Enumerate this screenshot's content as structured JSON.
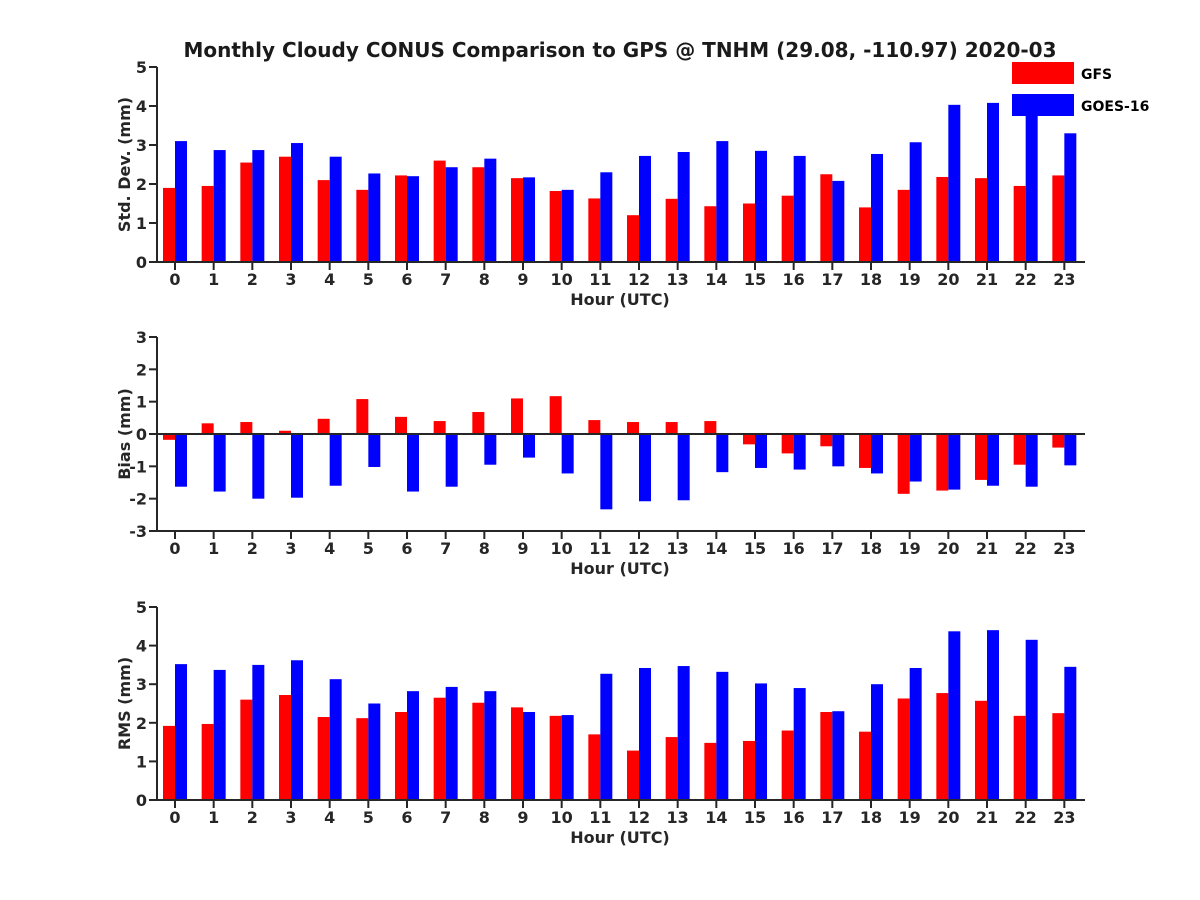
{
  "colors": {
    "gfs": "#ff0000",
    "goes": "#0000ff",
    "axis": "#262626"
  },
  "chart_data": [
    {
      "type": "bar",
      "title": "Monthly Cloudy CONUS Comparison to GPS @ TNHM (29.08, -110.97) 2020-03",
      "xlabel": "Hour (UTC)",
      "ylabel": "Std. Dev. (mm)",
      "ylim": [
        0,
        5
      ],
      "yticks": [
        0,
        1,
        2,
        3,
        4,
        5
      ],
      "categories": [
        "0",
        "1",
        "2",
        "3",
        "4",
        "5",
        "6",
        "7",
        "8",
        "9",
        "10",
        "11",
        "12",
        "13",
        "14",
        "15",
        "16",
        "17",
        "18",
        "19",
        "20",
        "21",
        "22",
        "23"
      ],
      "legend": {
        "placement": "top-right",
        "entries": [
          "GFS",
          "GOES-16"
        ]
      },
      "series": [
        {
          "name": "GFS",
          "color": "#ff0000",
          "values": [
            1.9,
            1.95,
            2.55,
            2.7,
            2.1,
            1.85,
            2.22,
            2.6,
            2.43,
            2.15,
            1.82,
            1.63,
            1.2,
            1.62,
            1.43,
            1.5,
            1.7,
            2.25,
            1.4,
            1.85,
            2.18,
            2.15,
            1.95,
            2.22
          ]
        },
        {
          "name": "GOES-16",
          "color": "#0000ff",
          "values": [
            3.1,
            2.87,
            2.87,
            3.05,
            2.7,
            2.27,
            2.2,
            2.43,
            2.65,
            2.17,
            1.85,
            2.3,
            2.72,
            2.82,
            3.1,
            2.85,
            2.72,
            2.08,
            2.77,
            3.07,
            4.03,
            4.08,
            3.8,
            3.3
          ]
        }
      ]
    },
    {
      "type": "bar",
      "xlabel": "Hour (UTC)",
      "ylabel": "Bias (mm)",
      "ylim": [
        -3,
        3
      ],
      "yticks": [
        -3,
        -2,
        -1,
        0,
        1,
        2,
        3
      ],
      "categories": [
        "0",
        "1",
        "2",
        "3",
        "4",
        "5",
        "6",
        "7",
        "8",
        "9",
        "10",
        "11",
        "12",
        "13",
        "14",
        "15",
        "16",
        "17",
        "18",
        "19",
        "20",
        "21",
        "22",
        "23"
      ],
      "series": [
        {
          "name": "GFS",
          "color": "#ff0000",
          "values": [
            -0.18,
            0.33,
            0.37,
            0.1,
            0.47,
            1.08,
            0.53,
            0.4,
            0.68,
            1.1,
            1.17,
            0.43,
            0.37,
            0.37,
            0.4,
            -0.32,
            -0.6,
            -0.38,
            -1.05,
            -1.85,
            -1.75,
            -1.42,
            -0.95,
            -0.42
          ]
        },
        {
          "name": "GOES-16",
          "color": "#0000ff",
          "values": [
            -1.63,
            -1.78,
            -2.0,
            -1.97,
            -1.6,
            -1.02,
            -1.78,
            -1.63,
            -0.95,
            -0.73,
            -1.22,
            -2.33,
            -2.08,
            -2.05,
            -1.18,
            -1.05,
            -1.1,
            -1.0,
            -1.22,
            -1.47,
            -1.72,
            -1.6,
            -1.63,
            -0.97
          ]
        }
      ]
    },
    {
      "type": "bar",
      "xlabel": "Hour (UTC)",
      "ylabel": "RMS (mm)",
      "ylim": [
        0,
        5
      ],
      "yticks": [
        0,
        1,
        2,
        3,
        4,
        5
      ],
      "categories": [
        "0",
        "1",
        "2",
        "3",
        "4",
        "5",
        "6",
        "7",
        "8",
        "9",
        "10",
        "11",
        "12",
        "13",
        "14",
        "15",
        "16",
        "17",
        "18",
        "19",
        "20",
        "21",
        "22",
        "23"
      ],
      "series": [
        {
          "name": "GFS",
          "color": "#ff0000",
          "values": [
            1.92,
            1.97,
            2.6,
            2.72,
            2.15,
            2.12,
            2.28,
            2.65,
            2.52,
            2.4,
            2.18,
            1.7,
            1.28,
            1.63,
            1.48,
            1.53,
            1.8,
            2.28,
            1.77,
            2.63,
            2.77,
            2.57,
            2.18,
            2.25
          ]
        },
        {
          "name": "GOES-16",
          "color": "#0000ff",
          "values": [
            3.52,
            3.37,
            3.5,
            3.62,
            3.13,
            2.5,
            2.82,
            2.93,
            2.82,
            2.28,
            2.2,
            3.27,
            3.42,
            3.47,
            3.32,
            3.02,
            2.9,
            2.3,
            3.0,
            3.42,
            4.37,
            4.4,
            4.15,
            3.45
          ]
        }
      ]
    }
  ]
}
